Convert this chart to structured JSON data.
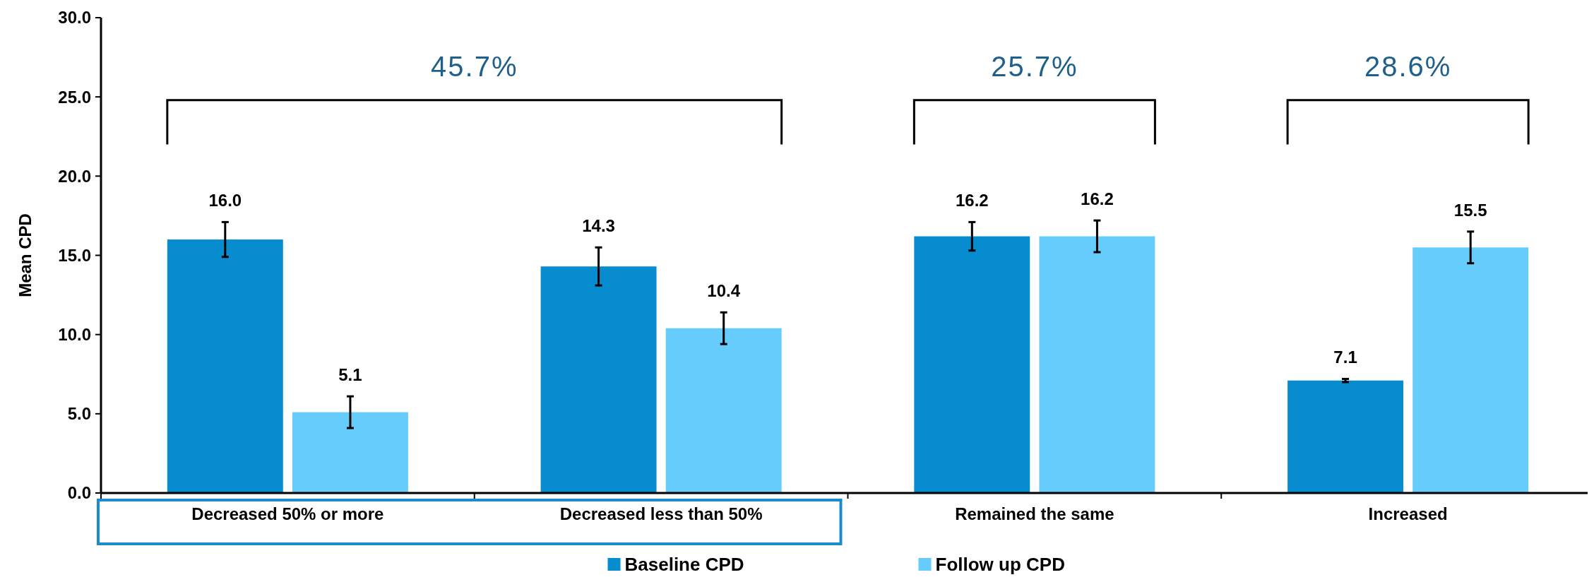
{
  "chart_data": {
    "type": "bar",
    "ylabel": "Mean CPD",
    "categories": [
      "Decreased 50% or more",
      "Decreased less than 50%",
      "Remained the same",
      "Increased"
    ],
    "series": [
      {
        "name": "Baseline CPD",
        "color": "#078ccf",
        "values": [
          16.0,
          14.3,
          16.2,
          7.1
        ],
        "value_labels": [
          "16.0",
          "14.3",
          "16.2",
          "7.1"
        ],
        "errors": [
          1.1,
          1.2,
          0.9,
          0.1
        ]
      },
      {
        "name": "Follow up CPD",
        "color": "#66ccfb",
        "values": [
          5.1,
          10.4,
          16.2,
          15.5
        ],
        "value_labels": [
          "5.1",
          "10.4",
          "16.2",
          "15.5"
        ],
        "errors": [
          1.0,
          1.0,
          1.0,
          1.0
        ]
      }
    ],
    "ylim": [
      0,
      30
    ],
    "yticks": [
      {
        "value": 0,
        "label": "0.0"
      },
      {
        "value": 5,
        "label": "5.0"
      },
      {
        "value": 10,
        "label": "10.0"
      },
      {
        "value": 15,
        "label": "15.0"
      },
      {
        "value": 20,
        "label": "20.0"
      },
      {
        "value": 25,
        "label": "25.0"
      },
      {
        "value": 30,
        "label": "30.0"
      }
    ],
    "legend": "bottom",
    "grid": false,
    "annotations": [
      "45.7%",
      "25.7%",
      "28.6%"
    ]
  }
}
